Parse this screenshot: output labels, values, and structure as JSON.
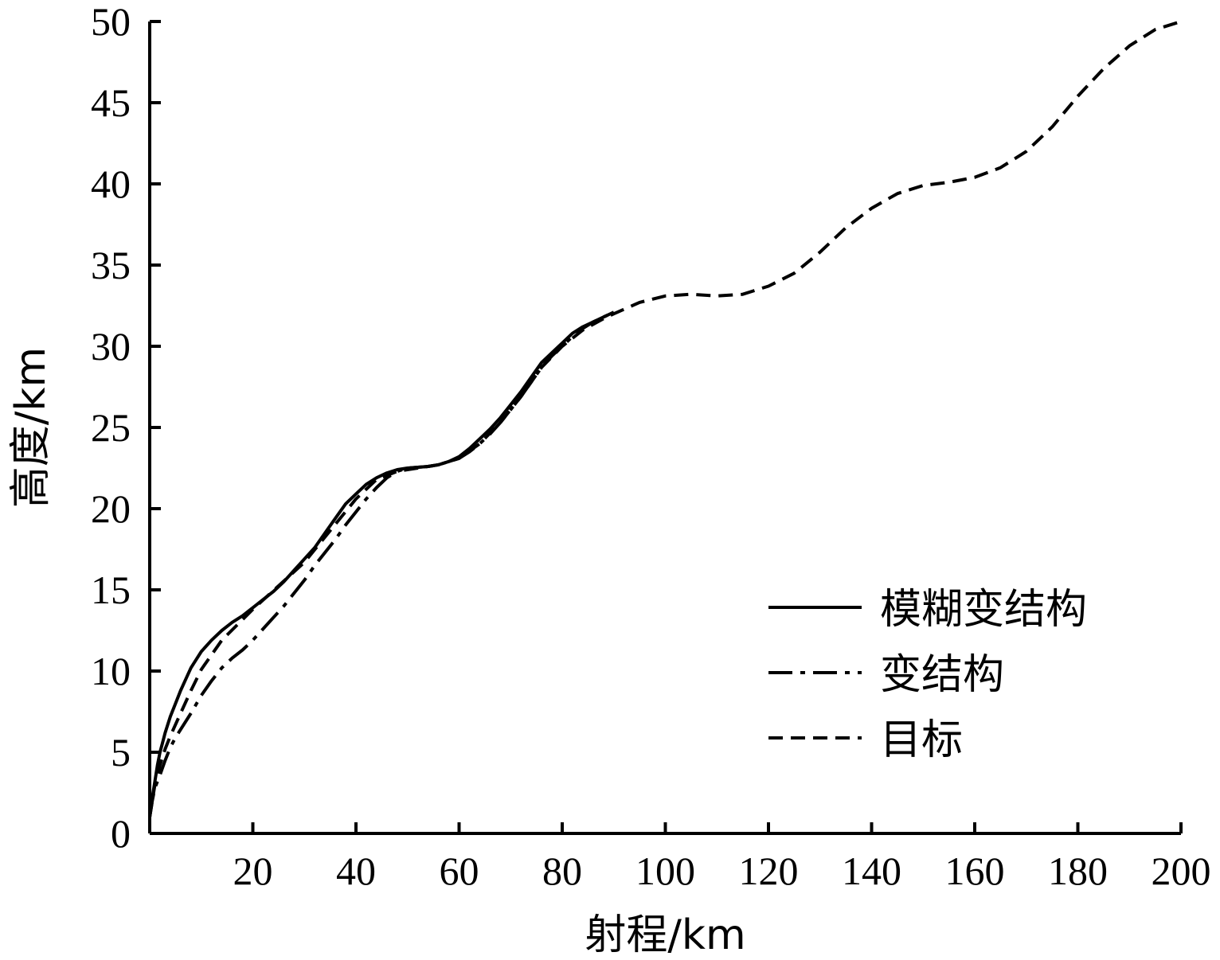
{
  "chart_data": {
    "type": "line",
    "xlabel": "射程/km",
    "ylabel": "高度/km",
    "xlim": [
      0,
      200
    ],
    "ylim": [
      0,
      50
    ],
    "x_ticks": [
      20,
      40,
      60,
      80,
      100,
      120,
      140,
      160,
      180,
      200
    ],
    "y_ticks": [
      0,
      5,
      10,
      15,
      20,
      25,
      30,
      35,
      40,
      45,
      50
    ],
    "grid": false,
    "legend_position": "lower-right",
    "series": [
      {
        "name": "模糊变结构",
        "style": "solid",
        "color": "#000000",
        "x": [
          0,
          0.5,
          1,
          1.5,
          2,
          2.5,
          3,
          4,
          5,
          6,
          7,
          8,
          9,
          10,
          12,
          14,
          16,
          18,
          20,
          22,
          24,
          26,
          28,
          30,
          32,
          34,
          36,
          38,
          40,
          42,
          44,
          46,
          48,
          50,
          52,
          54,
          56,
          58,
          60,
          62,
          64,
          66,
          68,
          70,
          72,
          74,
          76,
          78,
          80,
          82,
          84,
          86,
          88,
          90
        ],
        "y": [
          1.0,
          2.2,
          3.2,
          4.2,
          5.0,
          5.6,
          6.2,
          7.2,
          8.0,
          8.8,
          9.5,
          10.2,
          10.7,
          11.2,
          11.9,
          12.5,
          13.0,
          13.4,
          13.9,
          14.4,
          14.9,
          15.5,
          16.2,
          16.9,
          17.6,
          18.5,
          19.4,
          20.3,
          20.9,
          21.5,
          21.9,
          22.2,
          22.4,
          22.5,
          22.55,
          22.6,
          22.7,
          22.9,
          23.2,
          23.7,
          24.3,
          24.9,
          25.6,
          26.4,
          27.2,
          28.1,
          29.0,
          29.6,
          30.2,
          30.8,
          31.2,
          31.5,
          31.8,
          32.1
        ]
      },
      {
        "name": "变结构",
        "style": "dash-dot",
        "color": "#000000",
        "x": [
          0,
          0.5,
          1,
          2,
          3,
          4,
          5,
          6,
          8,
          10,
          12,
          14,
          16,
          18,
          20,
          22,
          24,
          26,
          28,
          30,
          32,
          34,
          36,
          38,
          40,
          42,
          44,
          46,
          48,
          50,
          52,
          54,
          56,
          58,
          60,
          62,
          64,
          66,
          68,
          70,
          72,
          74,
          76,
          78,
          80,
          82,
          84,
          86,
          88,
          90
        ],
        "y": [
          1.0,
          2.0,
          2.8,
          3.6,
          4.5,
          5.3,
          5.9,
          6.4,
          7.4,
          8.5,
          9.4,
          10.2,
          10.8,
          11.3,
          11.9,
          12.6,
          13.3,
          14.0,
          14.8,
          15.6,
          16.5,
          17.3,
          18.1,
          19.0,
          19.8,
          20.6,
          21.3,
          21.9,
          22.3,
          22.5,
          22.55,
          22.6,
          22.7,
          22.9,
          23.1,
          23.5,
          24.0,
          24.6,
          25.3,
          26.1,
          26.9,
          27.8,
          28.7,
          29.4,
          30.0,
          30.6,
          31.1,
          31.5,
          31.8,
          32.1
        ]
      },
      {
        "name": "目标",
        "style": "dashed",
        "color": "#000000",
        "x": [
          0,
          1,
          2,
          3,
          4,
          6,
          8,
          10,
          14,
          20,
          30,
          40,
          44,
          48,
          52,
          56,
          60,
          64,
          68,
          72,
          76,
          80,
          84,
          88,
          90,
          95,
          100,
          105,
          110,
          115,
          120,
          125,
          130,
          135,
          140,
          145,
          150,
          155,
          160,
          165,
          170,
          175,
          180,
          185,
          190,
          195,
          200
        ],
        "y": [
          1.0,
          3.0,
          4.2,
          5.2,
          6.0,
          7.4,
          8.8,
          10.1,
          11.9,
          13.8,
          16.7,
          20.6,
          21.8,
          22.3,
          22.5,
          22.7,
          23.1,
          24.0,
          25.3,
          26.9,
          28.7,
          30.0,
          31.0,
          31.7,
          32.0,
          32.7,
          33.1,
          33.2,
          33.1,
          33.2,
          33.7,
          34.5,
          35.8,
          37.3,
          38.5,
          39.4,
          39.9,
          40.1,
          40.4,
          41.0,
          42.0,
          43.5,
          45.4,
          47.1,
          48.5,
          49.5,
          50.0
        ]
      }
    ]
  }
}
